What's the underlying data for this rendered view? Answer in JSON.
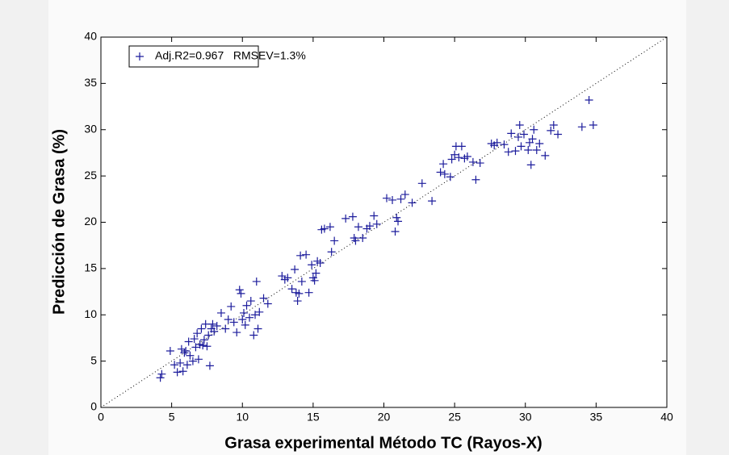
{
  "chart_data": {
    "type": "scatter",
    "xlabel": "Grasa experimental  Método TC (Rayos-X)",
    "ylabel": "Predicción de Grasa (%)",
    "xlim": [
      0,
      40
    ],
    "ylim": [
      0,
      40
    ],
    "xticks": [
      0,
      5,
      10,
      15,
      20,
      25,
      30,
      35,
      40
    ],
    "yticks": [
      0,
      5,
      10,
      15,
      20,
      25,
      30,
      35,
      40
    ],
    "grid": false,
    "legend": "upper left",
    "series": [
      {
        "name": "Adj.R2=0.967   RMSEV=1.3%",
        "color": "#1c1c9c",
        "x": [
          4.2,
          4.3,
          4.9,
          5.2,
          5.4,
          5.6,
          5.7,
          5.8,
          5.9,
          6.0,
          6.1,
          6.2,
          6.3,
          6.5,
          6.6,
          6.7,
          6.8,
          6.9,
          7.0,
          7.1,
          7.2,
          7.3,
          7.4,
          7.5,
          7.6,
          7.7,
          7.8,
          7.9,
          8.0,
          8.2,
          8.5,
          8.8,
          9.0,
          9.2,
          9.4,
          9.6,
          9.8,
          9.9,
          10.0,
          10.1,
          10.2,
          10.3,
          10.5,
          10.6,
          10.8,
          10.9,
          11.0,
          11.1,
          11.2,
          11.5,
          11.8,
          12.8,
          13.0,
          13.2,
          13.5,
          13.7,
          13.8,
          13.9,
          14.0,
          14.1,
          14.2,
          14.5,
          14.7,
          14.9,
          15.0,
          15.1,
          15.2,
          15.3,
          15.5,
          15.6,
          15.8,
          16.2,
          16.3,
          16.5,
          17.3,
          17.8,
          17.9,
          18.0,
          18.2,
          18.5,
          18.8,
          19.0,
          19.3,
          19.5,
          20.2,
          20.6,
          20.8,
          20.9,
          21.0,
          21.2,
          21.5,
          22.0,
          22.7,
          23.4,
          24.0,
          24.2,
          24.3,
          24.7,
          24.8,
          25.0,
          25.1,
          25.3,
          25.5,
          25.7,
          25.9,
          26.3,
          26.5,
          26.8,
          27.6,
          27.8,
          28.0,
          28.5,
          28.8,
          29.0,
          29.3,
          29.5,
          29.6,
          29.7,
          29.9,
          30.2,
          30.3,
          30.4,
          30.5,
          30.6,
          30.8,
          31.0,
          31.4,
          31.8,
          32.0,
          32.3,
          34.0,
          34.5,
          34.8
        ],
        "values": [
          3.2,
          3.6,
          6.1,
          4.6,
          3.8,
          4.8,
          6.3,
          3.9,
          5.9,
          6.1,
          4.6,
          7.1,
          5.6,
          5.0,
          7.4,
          6.5,
          8.0,
          5.2,
          6.8,
          8.5,
          6.7,
          7.3,
          9.0,
          6.6,
          7.8,
          4.5,
          8.5,
          9.0,
          8.2,
          8.8,
          10.2,
          8.5,
          9.5,
          10.9,
          9.2,
          8.1,
          12.7,
          12.3,
          9.5,
          10.2,
          8.9,
          11.0,
          9.7,
          11.5,
          7.8,
          10.0,
          13.6,
          8.5,
          10.3,
          11.8,
          11.2,
          14.2,
          13.8,
          14.0,
          12.8,
          14.9,
          12.4,
          11.5,
          12.3,
          16.4,
          13.6,
          16.5,
          12.4,
          15.4,
          14.0,
          13.7,
          14.5,
          15.8,
          15.6,
          19.2,
          19.3,
          19.5,
          16.8,
          18.0,
          20.4,
          20.6,
          18.3,
          18.0,
          19.5,
          18.3,
          19.3,
          19.6,
          20.7,
          19.8,
          22.6,
          22.4,
          19.0,
          20.5,
          20.1,
          22.5,
          23.0,
          22.1,
          24.2,
          22.3,
          25.4,
          26.3,
          25.2,
          24.9,
          26.8,
          27.3,
          28.2,
          27.0,
          28.2,
          26.9,
          27.1,
          26.5,
          24.6,
          26.4,
          28.5,
          28.3,
          28.6,
          28.4,
          27.6,
          29.6,
          27.7,
          29.2,
          30.5,
          28.2,
          29.5,
          27.8,
          28.6,
          26.2,
          29.0,
          30.0,
          27.8,
          28.5,
          27.2,
          29.9,
          30.5,
          29.5,
          30.3,
          33.2,
          30.5
        ]
      }
    ]
  }
}
